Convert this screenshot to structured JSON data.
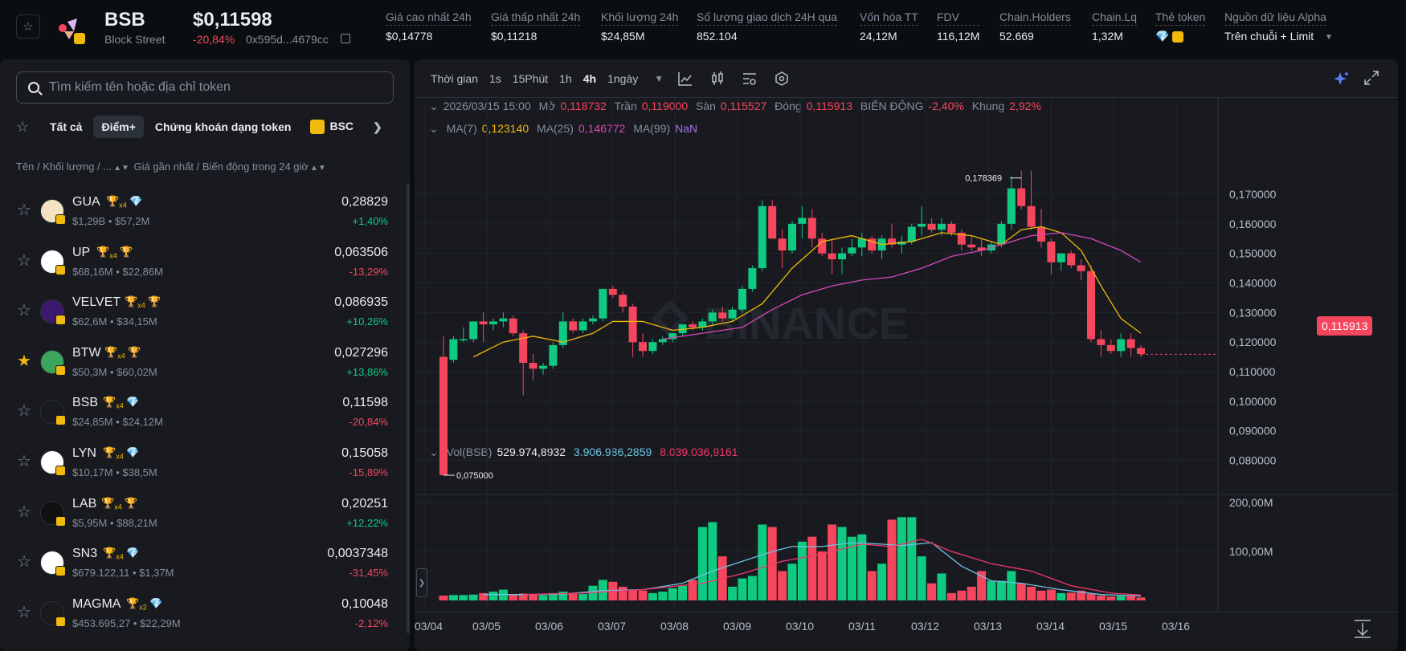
{
  "header": {
    "symbol": "BSB",
    "name": "Block Street",
    "price": "$0,11598",
    "change": "-20,84%",
    "address": "0x595d...4679cc",
    "stats": [
      {
        "label": "Giá cao nhất 24h",
        "value": "$0,14778"
      },
      {
        "label": "Giá thấp nhất 24h",
        "value": "$0,11218"
      },
      {
        "label": "Khối lượng 24h",
        "value": "$24,85M"
      },
      {
        "label": "Số lượng giao dịch 24H qua",
        "value": "852.104"
      },
      {
        "label": "Vốn hóa TT",
        "value": "24,12M"
      },
      {
        "label": "FDV",
        "value": "116,12M"
      },
      {
        "label": "Chain.Holders",
        "value": "52.669"
      },
      {
        "label": "Chain.Lq",
        "value": "1,32M"
      },
      {
        "label": "Thẻ token",
        "value": ""
      },
      {
        "label": "Nguồn dữ liệu Alpha",
        "value": "Trên chuỗi + Limit"
      }
    ]
  },
  "sidebar": {
    "search_placeholder": "Tìm kiếm tên hoặc địa chỉ token",
    "filters": [
      "Tất cả",
      "Điểm+",
      "Chứng khoán dạng token",
      "BSC"
    ],
    "active_filter": "Điểm+",
    "list_header_left": "Tên / Khối lượng / ...",
    "list_header_right": "Giá gần nhất / Biến động trong 24 giờ",
    "tokens": [
      {
        "name": "GUA",
        "mult": "x4",
        "vol": "$1,29B • $57,2M",
        "price": "0,28829",
        "change": "+1,40%",
        "up": true,
        "fav": false,
        "color": "#f3e3c2",
        "tag2": "gem"
      },
      {
        "name": "UP",
        "mult": "x4",
        "vol": "$68,16M • $22,86M",
        "price": "0,063506",
        "change": "-13,29%",
        "up": false,
        "fav": false,
        "color": "#ffffff",
        "tag2": "trophy"
      },
      {
        "name": "VELVET",
        "mult": "x4",
        "vol": "$62,6M • $34,15M",
        "price": "0,086935",
        "change": "+10,26%",
        "up": true,
        "fav": false,
        "color": "#3b1a6e",
        "tag2": "trophy"
      },
      {
        "name": "BTW",
        "mult": "x4",
        "vol": "$50,3M • $60,02M",
        "price": "0,027296",
        "change": "+13,86%",
        "up": true,
        "fav": true,
        "color": "#3ba55c",
        "tag2": "trophy"
      },
      {
        "name": "BSB",
        "mult": "x4",
        "vol": "$24,85M • $24,12M",
        "price": "0,11598",
        "change": "-20,84%",
        "up": false,
        "fav": false,
        "color": "#181a20",
        "tag2": "gem"
      },
      {
        "name": "LYN",
        "mult": "x4",
        "vol": "$10,17M • $38,5M",
        "price": "0,15058",
        "change": "-15,89%",
        "up": false,
        "fav": false,
        "color": "#ffffff",
        "tag2": "gem"
      },
      {
        "name": "LAB",
        "mult": "x4",
        "vol": "$5,95M • $88,21M",
        "price": "0,20251",
        "change": "+12,22%",
        "up": true,
        "fav": false,
        "color": "#111111",
        "tag2": "trophy"
      },
      {
        "name": "SN3",
        "mult": "x4",
        "vol": "$679.122,11 • $1,37M",
        "price": "0,0037348",
        "change": "-31,45%",
        "up": false,
        "fav": false,
        "color": "#ffffff",
        "tag2": "gem"
      },
      {
        "name": "MAGMA",
        "mult": "x2",
        "vol": "$453.695,27 • $22,29M",
        "price": "0,10048",
        "change": "-2,12%",
        "up": false,
        "fav": false,
        "color": "#1a1a1a",
        "tag2": "gem"
      }
    ]
  },
  "toolbar": {
    "label": "Thời gian",
    "intervals": [
      "1s",
      "15Phút",
      "1h",
      "4h",
      "1ngày"
    ],
    "active": "4h"
  },
  "legend": {
    "date": "2026/03/15 15:00",
    "open_label": "Mở",
    "open": "0,118732",
    "high_label": "Trần",
    "high": "0,119000",
    "low_label": "Sàn",
    "low": "0,115527",
    "close_label": "Đóng",
    "close": "0,115913",
    "change_label": "BIẾN ĐỘNG",
    "change": "-2,40%",
    "range_label": "Khung",
    "range": "2,92%",
    "ma7_label": "MA(7)",
    "ma7": "0,123140",
    "ma25_label": "MA(25)",
    "ma25": "0,146772",
    "ma99_label": "MA(99)",
    "ma99": "NaN",
    "vol_label": "Vol(BSB)",
    "vol": "529.974,8932",
    "vol_ma5": "3.906.986,2859",
    "vol_ma10": "8.039.036,9161"
  },
  "colors": {
    "up": "#0ecb81",
    "down": "#f6465d",
    "ma7": "#f0b90b",
    "ma25": "#d848b8",
    "ma99": "#a272e8",
    "vol_ma1": "#6cc3e0",
    "vol_ma2": "#f0386b"
  },
  "current_price_tag": "0,115913",
  "watermark": "BINANCE",
  "chart_data": {
    "type": "candlestick",
    "title": "BSB 4h",
    "price_axis_ticks": [
      "0,170000",
      "0,160000",
      "0,150000",
      "0,140000",
      "0,130000",
      "0,120000",
      "0,110000",
      "0,100000",
      "0,090000",
      "0,080000"
    ],
    "price_ylim": [
      0.073,
      0.183
    ],
    "volume_axis_ticks": [
      "200,00M",
      "100,00M"
    ],
    "volume_ylim": [
      0,
      220
    ],
    "x_ticks": [
      "03/04",
      "03/05",
      "03/06",
      "03/07",
      "03/08",
      "03/09",
      "03/10",
      "03/11",
      "03/12",
      "03/13",
      "03/14",
      "03/15",
      "03/16"
    ],
    "min_label": "0,075000",
    "max_label": "0,178369",
    "candles": [
      [
        0.115,
        0.122,
        0.075,
        0.075
      ],
      [
        0.114,
        0.122,
        0.113,
        0.121
      ],
      [
        0.121,
        0.125,
        0.12,
        0.121
      ],
      [
        0.121,
        0.127,
        0.12,
        0.127
      ],
      [
        0.127,
        0.13,
        0.12,
        0.126
      ],
      [
        0.126,
        0.128,
        0.124,
        0.127
      ],
      [
        0.127,
        0.13,
        0.125,
        0.128
      ],
      [
        0.128,
        0.129,
        0.122,
        0.123
      ],
      [
        0.123,
        0.124,
        0.102,
        0.113
      ],
      [
        0.113,
        0.116,
        0.107,
        0.111
      ],
      [
        0.111,
        0.113,
        0.109,
        0.112
      ],
      [
        0.112,
        0.12,
        0.111,
        0.119
      ],
      [
        0.119,
        0.13,
        0.118,
        0.127
      ],
      [
        0.127,
        0.128,
        0.123,
        0.124
      ],
      [
        0.124,
        0.128,
        0.123,
        0.127
      ],
      [
        0.127,
        0.129,
        0.126,
        0.128
      ],
      [
        0.128,
        0.138,
        0.127,
        0.138
      ],
      [
        0.138,
        0.139,
        0.135,
        0.136
      ],
      [
        0.136,
        0.137,
        0.13,
        0.132
      ],
      [
        0.132,
        0.133,
        0.115,
        0.12
      ],
      [
        0.12,
        0.123,
        0.115,
        0.117
      ],
      [
        0.117,
        0.121,
        0.116,
        0.12
      ],
      [
        0.12,
        0.122,
        0.119,
        0.121
      ],
      [
        0.121,
        0.123,
        0.12,
        0.123
      ],
      [
        0.123,
        0.126,
        0.122,
        0.126
      ],
      [
        0.126,
        0.127,
        0.124,
        0.125
      ],
      [
        0.125,
        0.128,
        0.124,
        0.127
      ],
      [
        0.127,
        0.131,
        0.126,
        0.13
      ],
      [
        0.13,
        0.132,
        0.127,
        0.128
      ],
      [
        0.128,
        0.132,
        0.127,
        0.131
      ],
      [
        0.131,
        0.139,
        0.13,
        0.138
      ],
      [
        0.138,
        0.146,
        0.137,
        0.145
      ],
      [
        0.145,
        0.168,
        0.144,
        0.166
      ],
      [
        0.166,
        0.168,
        0.155,
        0.155
      ],
      [
        0.155,
        0.158,
        0.145,
        0.151
      ],
      [
        0.151,
        0.161,
        0.15,
        0.16
      ],
      [
        0.16,
        0.166,
        0.155,
        0.162
      ],
      [
        0.162,
        0.165,
        0.152,
        0.155
      ],
      [
        0.155,
        0.157,
        0.149,
        0.15
      ],
      [
        0.15,
        0.155,
        0.143,
        0.148
      ],
      [
        0.148,
        0.152,
        0.143,
        0.15
      ],
      [
        0.15,
        0.155,
        0.149,
        0.152
      ],
      [
        0.152,
        0.157,
        0.149,
        0.155
      ],
      [
        0.155,
        0.156,
        0.15,
        0.151
      ],
      [
        0.151,
        0.156,
        0.148,
        0.155
      ],
      [
        0.155,
        0.16,
        0.152,
        0.153
      ],
      [
        0.153,
        0.156,
        0.15,
        0.154
      ],
      [
        0.154,
        0.16,
        0.153,
        0.159
      ],
      [
        0.159,
        0.166,
        0.156,
        0.16
      ],
      [
        0.16,
        0.162,
        0.157,
        0.158
      ],
      [
        0.158,
        0.162,
        0.156,
        0.16
      ],
      [
        0.16,
        0.161,
        0.156,
        0.157
      ],
      [
        0.157,
        0.158,
        0.151,
        0.153
      ],
      [
        0.153,
        0.156,
        0.151,
        0.152
      ],
      [
        0.152,
        0.155,
        0.149,
        0.151
      ],
      [
        0.151,
        0.154,
        0.15,
        0.153
      ],
      [
        0.153,
        0.161,
        0.152,
        0.16
      ],
      [
        0.16,
        0.176,
        0.158,
        0.172
      ],
      [
        0.172,
        0.178,
        0.165,
        0.166
      ],
      [
        0.166,
        0.178,
        0.158,
        0.159
      ],
      [
        0.159,
        0.165,
        0.152,
        0.154
      ],
      [
        0.154,
        0.155,
        0.143,
        0.147
      ],
      [
        0.147,
        0.15,
        0.144,
        0.15
      ],
      [
        0.15,
        0.151,
        0.145,
        0.146
      ],
      [
        0.146,
        0.148,
        0.141,
        0.144
      ],
      [
        0.144,
        0.146,
        0.12,
        0.121
      ],
      [
        0.121,
        0.124,
        0.115,
        0.119
      ],
      [
        0.119,
        0.121,
        0.116,
        0.117
      ],
      [
        0.117,
        0.123,
        0.115,
        0.121
      ],
      [
        0.121,
        0.123,
        0.115,
        0.118
      ],
      [
        0.118,
        0.119,
        0.115,
        0.116
      ]
    ],
    "volumes": [
      10,
      11,
      11,
      12,
      15,
      18,
      22,
      12,
      14,
      12,
      11,
      15,
      18,
      14,
      13,
      30,
      42,
      38,
      28,
      22,
      20,
      15,
      18,
      25,
      30,
      42,
      150,
      160,
      90,
      28,
      45,
      50,
      155,
      150,
      60,
      75,
      120,
      130,
      100,
      155,
      150,
      130,
      135,
      60,
      75,
      165,
      170,
      170,
      90,
      35,
      55,
      15,
      20,
      28,
      60,
      40,
      40,
      60,
      35,
      28,
      20,
      22,
      15,
      16,
      20,
      14,
      10,
      8,
      9,
      10,
      6
    ],
    "ma7": [
      [
        0,
        0
      ],
      [
        3,
        0.115
      ],
      [
        6,
        0.12
      ],
      [
        9,
        0.122
      ],
      [
        12,
        0.12
      ],
      [
        15,
        0.123
      ],
      [
        17,
        0.127
      ],
      [
        20,
        0.127
      ],
      [
        23,
        0.124
      ],
      [
        26,
        0.125
      ],
      [
        29,
        0.127
      ],
      [
        32,
        0.133
      ],
      [
        35,
        0.145
      ],
      [
        38,
        0.154
      ],
      [
        41,
        0.156
      ],
      [
        44,
        0.153
      ],
      [
        47,
        0.154
      ],
      [
        50,
        0.157
      ],
      [
        53,
        0.156
      ],
      [
        56,
        0.153
      ],
      [
        58,
        0.158
      ],
      [
        60,
        0.159
      ],
      [
        62,
        0.157
      ],
      [
        64,
        0.151
      ],
      [
        66,
        0.139
      ],
      [
        68,
        0.128
      ],
      [
        70,
        0.123
      ]
    ],
    "ma25": [
      [
        22,
        0.121
      ],
      [
        26,
        0.123
      ],
      [
        30,
        0.125
      ],
      [
        33,
        0.131
      ],
      [
        36,
        0.136
      ],
      [
        39,
        0.139
      ],
      [
        42,
        0.141
      ],
      [
        45,
        0.142
      ],
      [
        48,
        0.145
      ],
      [
        51,
        0.149
      ],
      [
        54,
        0.151
      ],
      [
        57,
        0.154
      ],
      [
        59,
        0.156
      ],
      [
        62,
        0.157
      ],
      [
        65,
        0.155
      ],
      [
        68,
        0.151
      ],
      [
        70,
        0.147
      ]
    ],
    "vol_ma5": [
      [
        4,
        12
      ],
      [
        8,
        12
      ],
      [
        12,
        13
      ],
      [
        16,
        20
      ],
      [
        20,
        22
      ],
      [
        24,
        35
      ],
      [
        27,
        60
      ],
      [
        30,
        80
      ],
      [
        33,
        100
      ],
      [
        35,
        110
      ],
      [
        38,
        110
      ],
      [
        41,
        118
      ],
      [
        44,
        115
      ],
      [
        46,
        112
      ],
      [
        49,
        118
      ],
      [
        52,
        70
      ],
      [
        55,
        40
      ],
      [
        58,
        35
      ],
      [
        62,
        22
      ],
      [
        66,
        12
      ],
      [
        70,
        9
      ]
    ],
    "vol_ma10": [
      [
        8,
        12
      ],
      [
        14,
        15
      ],
      [
        20,
        22
      ],
      [
        26,
        35
      ],
      [
        30,
        55
      ],
      [
        34,
        80
      ],
      [
        38,
        95
      ],
      [
        42,
        115
      ],
      [
        45,
        110
      ],
      [
        48,
        125
      ],
      [
        51,
        100
      ],
      [
        55,
        75
      ],
      [
        59,
        60
      ],
      [
        63,
        30
      ],
      [
        67,
        15
      ],
      [
        70,
        11
      ]
    ]
  }
}
